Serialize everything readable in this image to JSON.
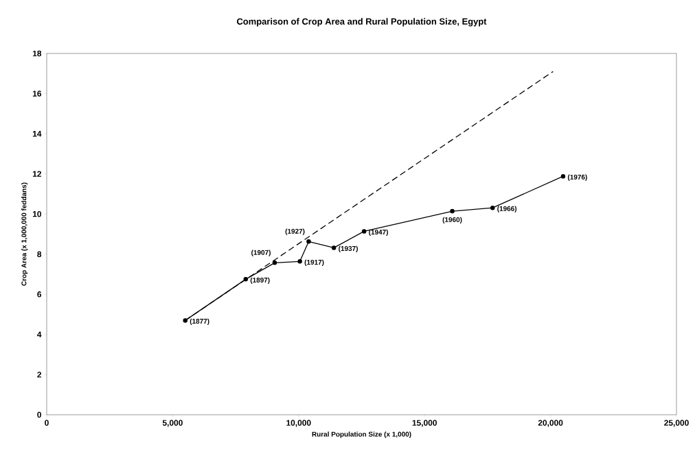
{
  "chart_data": {
    "type": "line",
    "title": "Comparison of Crop Area and Rural Population Size, Egypt",
    "xlabel": "Rural Population Size (x 1,000)",
    "ylabel": "Crop Area (x 1,000,000 feddans)",
    "xlim": [
      0,
      25000
    ],
    "ylim": [
      0,
      18
    ],
    "xticks": [
      0,
      {
        "value": 5000,
        "label": "5,000"
      },
      {
        "value": 10000,
        "label": "10,000"
      },
      {
        "value": 15000,
        "label": "15,000"
      },
      {
        "value": 20000,
        "label": "20,000"
      },
      {
        "value": 25000,
        "label": "25,000"
      }
    ],
    "yticks": [
      0,
      2,
      4,
      6,
      8,
      10,
      12,
      14,
      16,
      18
    ],
    "series": [
      {
        "color": "#000000",
        "marker": "circle",
        "line_style": "solid",
        "x": [
          5500,
          7900,
          9050,
          10050,
          10400,
          11400,
          12600,
          16100,
          17700,
          20500
        ],
        "values": [
          4.7,
          6.75,
          7.57,
          7.64,
          8.63,
          8.32,
          9.14,
          10.14,
          10.31,
          11.88
        ]
      },
      {
        "type": "line",
        "color": "#000000",
        "marker": "none",
        "line_style": "dashed",
        "x": [
          5500,
          20100
        ],
        "values": [
          4.7,
          17.1
        ]
      }
    ],
    "annotations": [
      {
        "text": "(1877)",
        "x": 5500,
        "y": 4.7
      },
      {
        "text": "(1897)",
        "x": 7900,
        "y": 6.75
      },
      {
        "text": "(1907)",
        "x": 9050,
        "y": 7.57
      },
      {
        "text": "(1917)",
        "x": 10050,
        "y": 7.64
      },
      {
        "text": "(1927)",
        "x": 10400,
        "y": 8.63
      },
      {
        "text": "(1937)",
        "x": 11400,
        "y": 8.32
      },
      {
        "text": "(1947)",
        "x": 12600,
        "y": 9.14
      },
      {
        "text": "(1960)",
        "x": 16100,
        "y": 10.14
      },
      {
        "text": "(1966)",
        "x": 17700,
        "y": 10.31
      },
      {
        "text": "(1976)",
        "x": 20500,
        "y": 11.88
      }
    ]
  }
}
